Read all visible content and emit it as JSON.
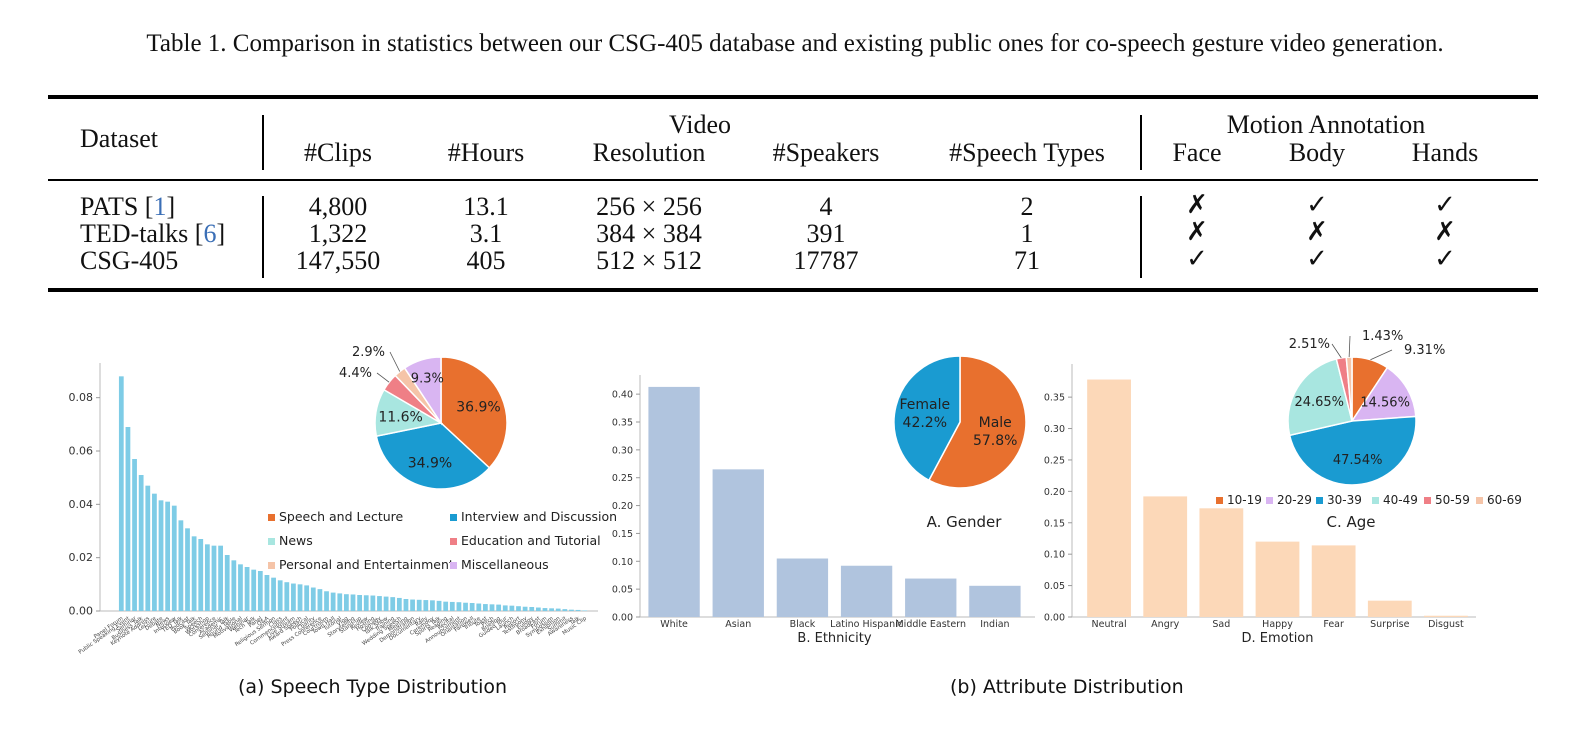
{
  "table": {
    "caption": "Table 1. Comparison in statistics between our CSG-405 database and existing public ones for co-speech gesture video generation.",
    "group_video": "Video",
    "group_motion": "Motion Annotation",
    "columns": [
      "Dataset",
      "#Clips",
      "#Hours",
      "Resolution",
      "#Speakers",
      "#Speech Types",
      "Face",
      "Body",
      "Hands"
    ],
    "rows": [
      {
        "name": "PATS [",
        "ref": "1",
        "close": "]",
        "clips": "4,800",
        "hours": "13.1",
        "resolution": "256 × 256",
        "speakers": "4",
        "types": "2",
        "face": "✗",
        "body": "✓",
        "hands": "✓"
      },
      {
        "name": "TED-talks [",
        "ref": "6",
        "close": "]",
        "clips": "1,322",
        "hours": "3.1",
        "resolution": "384 × 384",
        "speakers": "391",
        "types": "1",
        "face": "✗",
        "body": "✗",
        "hands": "✗"
      },
      {
        "name": "CSG-405",
        "ref": "",
        "close": "",
        "clips": "147,550",
        "hours": "405",
        "resolution": "512 × 512",
        "speakers": "17787",
        "types": "71",
        "face": "✓",
        "body": "✓",
        "hands": "✓"
      }
    ]
  },
  "figure": {
    "caption_a": "(a) Speech Type Distribution",
    "caption_b": "(b) Attribute Distribution"
  },
  "chart_data": [
    {
      "type": "bar",
      "id": "speech-type",
      "color": "#7ecce6",
      "ylim": [
        0,
        0.09
      ],
      "yticks": [
        "0.00",
        "0.02",
        "0.04",
        "0.06",
        "0.08"
      ],
      "ytick_values": [
        0,
        0.02,
        0.04,
        0.06,
        0.08
      ],
      "categories": [
        "Panel Forum",
        "Public Speaking Event",
        "Seminar",
        "Business Talk",
        "Keynote Address",
        "Lecture",
        "Debate",
        "News",
        "Interview",
        "TED Talk",
        "Podcast",
        "Book Talk",
        "Speech",
        "Workshop",
        "Conference",
        "Academic",
        "Seminar Talk",
        "Round Table",
        "Motivational",
        "Webinar",
        "Tech Talk",
        "Panel",
        "Q&A",
        "Religious Sermon",
        "Class",
        "Commencement",
        "Live Stream",
        "Award Speech",
        "Political",
        "Charity",
        "Press Conference",
        "Courtroom",
        "Town Hall",
        "Tutorial",
        "Vlog",
        "Storytelling",
        "Stand-up",
        "Review",
        "Hosting",
        "Comedy",
        "Talk Show",
        "Training",
        "Wedding Speech",
        "Meeting",
        "Demonstration",
        "Documentary",
        "Rally",
        "Ceremony",
        "Sports Talk",
        "Reading",
        "Recital",
        "Announcement",
        "Orientation",
        "Farewell",
        "Tribute",
        "Toast",
        "Pitch",
        "Briefing",
        "Guided Tour",
        "Launch",
        "Report",
        "Testimony",
        "Eulogy",
        "Broadcast",
        "Forum",
        "Symposium",
        "Exhibition",
        "Summit",
        "Awareness",
        "Talk",
        "Music Clip"
      ],
      "values": [
        0.088,
        0.069,
        0.057,
        0.051,
        0.047,
        0.044,
        0.0415,
        0.041,
        0.0395,
        0.034,
        0.031,
        0.028,
        0.027,
        0.025,
        0.0245,
        0.0245,
        0.021,
        0.019,
        0.0175,
        0.0165,
        0.0155,
        0.015,
        0.0135,
        0.0125,
        0.0115,
        0.0108,
        0.0103,
        0.01,
        0.0096,
        0.0088,
        0.0082,
        0.0074,
        0.0069,
        0.0066,
        0.0063,
        0.0062,
        0.006,
        0.0059,
        0.0058,
        0.0056,
        0.0054,
        0.0052,
        0.0049,
        0.0045,
        0.0043,
        0.0042,
        0.0041,
        0.004,
        0.0038,
        0.0035,
        0.0034,
        0.0033,
        0.0031,
        0.003,
        0.0028,
        0.0026,
        0.0025,
        0.0024,
        0.0021,
        0.002,
        0.0018,
        0.0016,
        0.0015,
        0.0013,
        0.0011,
        0.001,
        0.0009,
        0.0007,
        0.0005,
        0.0004,
        0.0002
      ]
    },
    {
      "type": "pie",
      "id": "speech-type-pie",
      "slices": [
        {
          "name": "Speech and Lecture",
          "value": 36.9,
          "label": "36.9%",
          "color": "#e8702e"
        },
        {
          "name": "Interview and Discussion",
          "value": 34.9,
          "label": "34.9%",
          "color": "#1a9bd1"
        },
        {
          "name": "News",
          "value": 11.6,
          "label": "11.6%",
          "color": "#a8e6e0"
        },
        {
          "name": "Education and Tutorial",
          "value": 4.4,
          "label": "4.4%",
          "color": "#ef7f86"
        },
        {
          "name": "Personal and Entertainment",
          "value": 2.9,
          "label": "2.9%",
          "color": "#f5c4a8"
        },
        {
          "name": "Miscellaneous",
          "value": 9.3,
          "label": "9.3%",
          "color": "#d9b5f2"
        }
      ],
      "legend": "below"
    },
    {
      "type": "bar",
      "id": "ethnicity",
      "xlabel": "B. Ethnicity",
      "color": "#b0c4de",
      "ylim": [
        0,
        0.42
      ],
      "yticks": [
        "0.00",
        "0.05",
        "0.10",
        "0.15",
        "0.20",
        "0.25",
        "0.30",
        "0.35",
        "0.40"
      ],
      "ytick_values": [
        0,
        0.05,
        0.1,
        0.15,
        0.2,
        0.25,
        0.3,
        0.35,
        0.4
      ],
      "categories": [
        "White",
        "Asian",
        "Black",
        "Latino Hispanic",
        "Middle Eastern",
        "Indian"
      ],
      "values": [
        0.413,
        0.265,
        0.105,
        0.092,
        0.069,
        0.056
      ]
    },
    {
      "type": "pie",
      "id": "gender-pie",
      "title": "A. Gender",
      "slices": [
        {
          "name": "Male",
          "value": 57.8,
          "label": "57.8%",
          "color": "#e8702e"
        },
        {
          "name": "Female",
          "value": 42.2,
          "label": "42.2%",
          "color": "#1a9bd1"
        }
      ]
    },
    {
      "type": "bar",
      "id": "emotion",
      "xlabel": "D. Emotion",
      "color": "#fcd8b8",
      "ylim": [
        0,
        0.39
      ],
      "yticks": [
        "0.00",
        "0.05",
        "0.10",
        "0.15",
        "0.20",
        "0.25",
        "0.30",
        "0.35"
      ],
      "ytick_values": [
        0,
        0.05,
        0.1,
        0.15,
        0.2,
        0.25,
        0.3,
        0.35
      ],
      "categories": [
        "Neutral",
        "Angry",
        "Sad",
        "Happy",
        "Fear",
        "Surprise",
        "Disgust"
      ],
      "values": [
        0.378,
        0.192,
        0.173,
        0.12,
        0.114,
        0.026,
        0.002
      ]
    },
    {
      "type": "pie",
      "id": "age-pie",
      "title": "C. Age",
      "slices": [
        {
          "name": "10-19",
          "value": 9.31,
          "label": "9.31%",
          "color": "#e8702e"
        },
        {
          "name": "20-29",
          "value": 14.56,
          "label": "14.56%",
          "color": "#d9b5f2"
        },
        {
          "name": "30-39",
          "value": 47.54,
          "label": "47.54%",
          "color": "#1a9bd1"
        },
        {
          "name": "40-49",
          "value": 24.65,
          "label": "24.65%",
          "color": "#a8e6e0"
        },
        {
          "name": "50-59",
          "value": 2.51,
          "label": "2.51%",
          "color": "#ef7f86"
        },
        {
          "name": "60-69",
          "value": 1.43,
          "label": "1.43%",
          "color": "#f5c4a8"
        }
      ],
      "legend": "below"
    }
  ]
}
